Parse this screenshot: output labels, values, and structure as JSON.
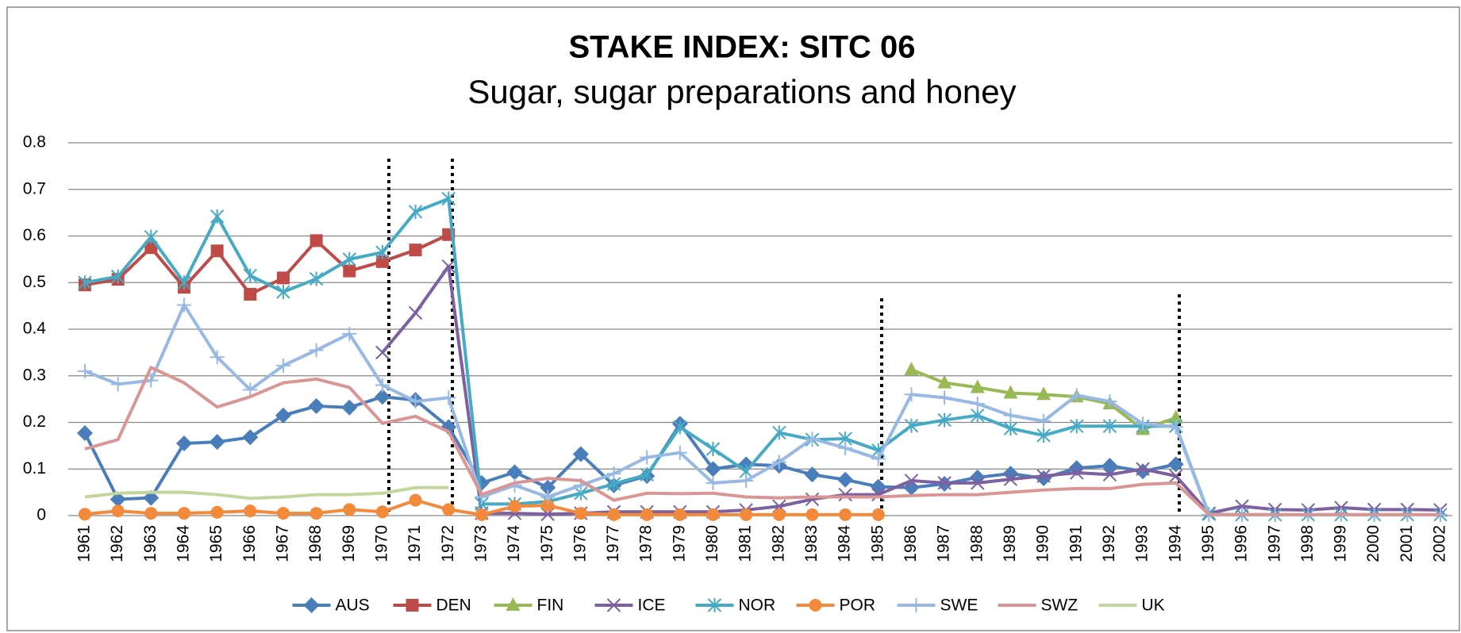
{
  "chart_data": {
    "type": "line",
    "title": "STAKE INDEX: SITC 06",
    "subtitle": "Sugar, sugar preparations and honey",
    "categories": [
      "1961",
      "1962",
      "1963",
      "1964",
      "1965",
      "1966",
      "1967",
      "1968",
      "1969",
      "1970",
      "1971",
      "1972",
      "1973",
      "1974",
      "1975",
      "1976",
      "1977",
      "1978",
      "1979",
      "1980",
      "1981",
      "1982",
      "1983",
      "1984",
      "1985",
      "1986",
      "1987",
      "1988",
      "1989",
      "1990",
      "1991",
      "1992",
      "1993",
      "1994",
      "1995",
      "1996",
      "1997",
      "1998",
      "1999",
      "2000",
      "2001",
      "2002"
    ],
    "ylim": [
      0,
      0.8
    ],
    "yticks": [
      0,
      0.1,
      0.2,
      0.3,
      0.4,
      0.5,
      0.6,
      0.7,
      0.8
    ],
    "grid": true,
    "legend": "bottom",
    "series": [
      {
        "name": "AUS",
        "color": "#4a7ebb",
        "marker": "diamond",
        "values": [
          0.177,
          0.035,
          0.038,
          0.155,
          0.158,
          0.168,
          0.215,
          0.235,
          0.232,
          0.255,
          0.248,
          0.19,
          0.07,
          0.093,
          0.06,
          0.132,
          0.065,
          0.085,
          0.197,
          0.1,
          0.11,
          0.107,
          0.088,
          0.077,
          0.062,
          0.06,
          0.068,
          0.082,
          0.09,
          0.08,
          0.102,
          0.107,
          0.095,
          0.11,
          null,
          null,
          null,
          null,
          null,
          null,
          null,
          null
        ]
      },
      {
        "name": "DEN",
        "color": "#be4b48",
        "marker": "square",
        "values": [
          0.495,
          0.507,
          0.575,
          0.49,
          0.568,
          0.475,
          0.51,
          0.59,
          0.525,
          0.545,
          0.57,
          0.603,
          null,
          null,
          null,
          null,
          null,
          null,
          null,
          null,
          null,
          null,
          null,
          null,
          null,
          null,
          null,
          null,
          null,
          null,
          null,
          null,
          null,
          null,
          null,
          null,
          null,
          null,
          null,
          null,
          null,
          null
        ]
      },
      {
        "name": "FIN",
        "color": "#98b954",
        "marker": "triangle",
        "values": [
          null,
          null,
          null,
          null,
          null,
          null,
          null,
          null,
          null,
          null,
          null,
          null,
          null,
          null,
          null,
          null,
          null,
          null,
          null,
          null,
          null,
          null,
          null,
          null,
          null,
          0.313,
          0.285,
          0.275,
          0.263,
          0.26,
          0.255,
          0.24,
          0.185,
          0.21,
          null,
          null,
          null,
          null,
          null,
          null,
          null,
          null
        ]
      },
      {
        "name": "ICE",
        "color": "#7d60a0",
        "marker": "x",
        "values": [
          null,
          null,
          null,
          null,
          null,
          null,
          null,
          null,
          null,
          0.35,
          0.435,
          0.535,
          0.005,
          0.005,
          0.003,
          0.005,
          0.008,
          0.008,
          0.008,
          0.008,
          0.012,
          0.02,
          0.035,
          0.045,
          0.045,
          0.075,
          0.07,
          0.07,
          0.078,
          0.085,
          0.092,
          0.088,
          0.1,
          0.085,
          0.005,
          0.02,
          0.013,
          0.012,
          0.017,
          0.013,
          0.013,
          0.012
        ]
      },
      {
        "name": "NOR",
        "color": "#46aac5",
        "marker": "star",
        "values": [
          0.5,
          0.513,
          0.598,
          0.5,
          0.642,
          0.515,
          0.48,
          0.508,
          0.55,
          0.565,
          0.652,
          0.68,
          0.025,
          0.025,
          0.03,
          0.048,
          0.068,
          0.088,
          0.19,
          0.143,
          0.095,
          0.178,
          0.163,
          0.165,
          0.14,
          0.193,
          0.205,
          0.215,
          0.187,
          0.172,
          0.192,
          0.192,
          0.192,
          0.192,
          0.003,
          0.002,
          0.002,
          0.002,
          0.002,
          0.002,
          0.002,
          0.002
        ]
      },
      {
        "name": "POR",
        "color": "#f38a3b",
        "marker": "circle",
        "values": [
          0.003,
          0.01,
          0.005,
          0.005,
          0.007,
          0.01,
          0.005,
          0.005,
          0.013,
          0.008,
          0.033,
          0.013,
          0.002,
          0.02,
          0.022,
          0.005,
          0.002,
          0.002,
          0.002,
          0.002,
          0.002,
          0.002,
          0.002,
          0.002,
          0.002,
          null,
          null,
          null,
          null,
          null,
          null,
          null,
          null,
          null,
          null,
          null,
          null,
          null,
          null,
          null,
          null,
          null
        ]
      },
      {
        "name": "SWE",
        "color": "#98b9e3",
        "marker": "plus",
        "values": [
          0.31,
          0.282,
          0.29,
          0.452,
          0.34,
          0.27,
          0.322,
          0.355,
          0.39,
          0.28,
          0.245,
          0.253,
          0.04,
          0.065,
          0.04,
          0.065,
          0.09,
          0.125,
          0.135,
          0.07,
          0.075,
          0.115,
          0.165,
          0.145,
          0.122,
          0.26,
          0.253,
          0.24,
          0.215,
          0.203,
          0.258,
          0.245,
          0.197,
          0.19,
          0.002,
          0.002,
          0.002,
          0.002,
          0.002,
          0.002,
          0.002,
          0.002
        ]
      },
      {
        "name": "SWZ",
        "color": "#d99694",
        "marker": "none",
        "values": [
          0.143,
          0.163,
          0.318,
          0.285,
          0.233,
          0.255,
          0.285,
          0.293,
          0.275,
          0.198,
          0.213,
          0.18,
          0.045,
          0.07,
          0.08,
          0.075,
          0.033,
          0.048,
          0.047,
          0.048,
          0.04,
          0.038,
          0.04,
          0.04,
          0.04,
          0.043,
          0.045,
          0.045,
          0.05,
          0.055,
          0.058,
          0.058,
          0.067,
          0.07,
          0.002,
          0.002,
          0.002,
          0.002,
          0.002,
          0.002,
          0.002,
          0.002
        ]
      },
      {
        "name": "UK",
        "color": "#c3d69b",
        "marker": "none",
        "values": [
          0.04,
          0.048,
          0.05,
          0.05,
          0.045,
          0.037,
          0.04,
          0.045,
          0.045,
          0.048,
          0.06,
          0.06,
          null,
          null,
          null,
          null,
          null,
          null,
          null,
          null,
          null,
          null,
          null,
          null,
          null,
          null,
          null,
          null,
          null,
          null,
          null,
          null,
          null,
          null,
          null,
          null,
          null,
          null,
          null,
          null,
          null,
          null
        ]
      }
    ]
  }
}
